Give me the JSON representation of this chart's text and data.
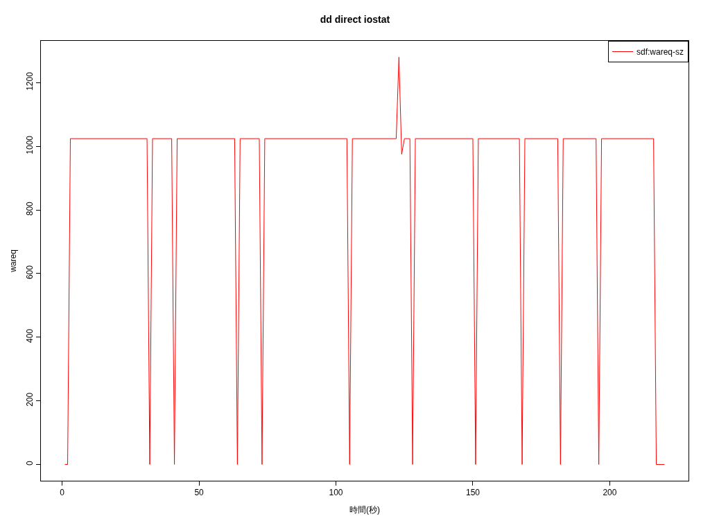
{
  "chart_data": {
    "type": "line",
    "title": "dd direct iostat",
    "xlabel": "時間(秒)",
    "ylabel": "wareq",
    "x": [
      1,
      2,
      3,
      31,
      32,
      33,
      40,
      41,
      42,
      63,
      64,
      65,
      72,
      73,
      74,
      104,
      105,
      106,
      122,
      123,
      124,
      125,
      127,
      128,
      129,
      150,
      151,
      152,
      167,
      168,
      169,
      181,
      182,
      183,
      195,
      196,
      197,
      216,
      217,
      220
    ],
    "series": [
      {
        "name": "sdf:wareq-sz",
        "color": "#ff0000",
        "values": [
          0,
          0,
          1024,
          1024,
          0,
          1024,
          1024,
          0,
          1024,
          1024,
          0,
          1024,
          1024,
          0,
          1024,
          1024,
          0,
          1024,
          1024,
          1280,
          975,
          1024,
          1024,
          0,
          1024,
          1024,
          0,
          1024,
          1024,
          0,
          1024,
          1024,
          0,
          1024,
          1024,
          0,
          1024,
          1024,
          0,
          0
        ]
      }
    ],
    "xlim": [
      -7.76,
      228.76
    ],
    "ylim": [
      -51.2,
      1331.2
    ],
    "xticks": [
      0,
      50,
      100,
      150,
      200
    ],
    "yticks": [
      0,
      200,
      400,
      600,
      800,
      1000,
      1200
    ],
    "grid": false,
    "legend": "top right",
    "line_style": "solid"
  }
}
